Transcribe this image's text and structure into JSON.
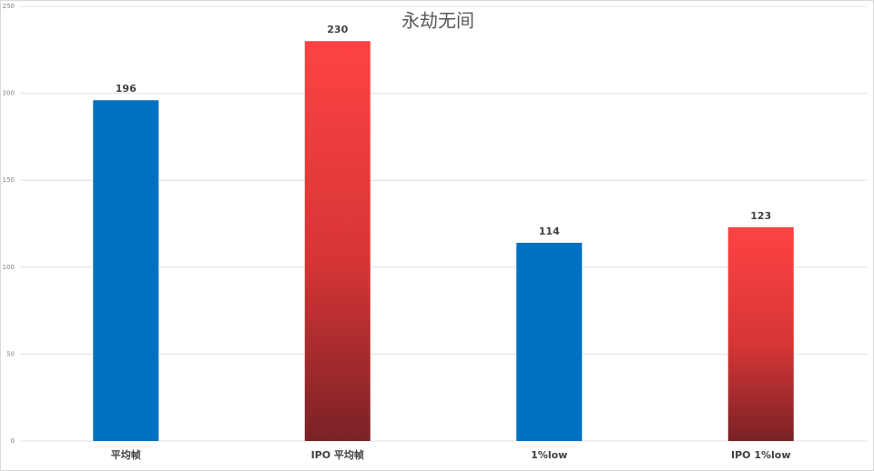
{
  "chart_data": {
    "type": "bar",
    "title": "永劫无间",
    "categories": [
      "平均帧",
      "IPO 平均帧",
      "1%low",
      "IPO 1%low"
    ],
    "values": [
      196,
      230,
      114,
      123
    ],
    "colors": [
      "#0070c0",
      "#ff4343",
      "#0070c0",
      "#ff4343"
    ],
    "ylim": [
      0,
      250
    ],
    "yticks": [
      0,
      50,
      100,
      150,
      200,
      250
    ],
    "grid": true
  }
}
